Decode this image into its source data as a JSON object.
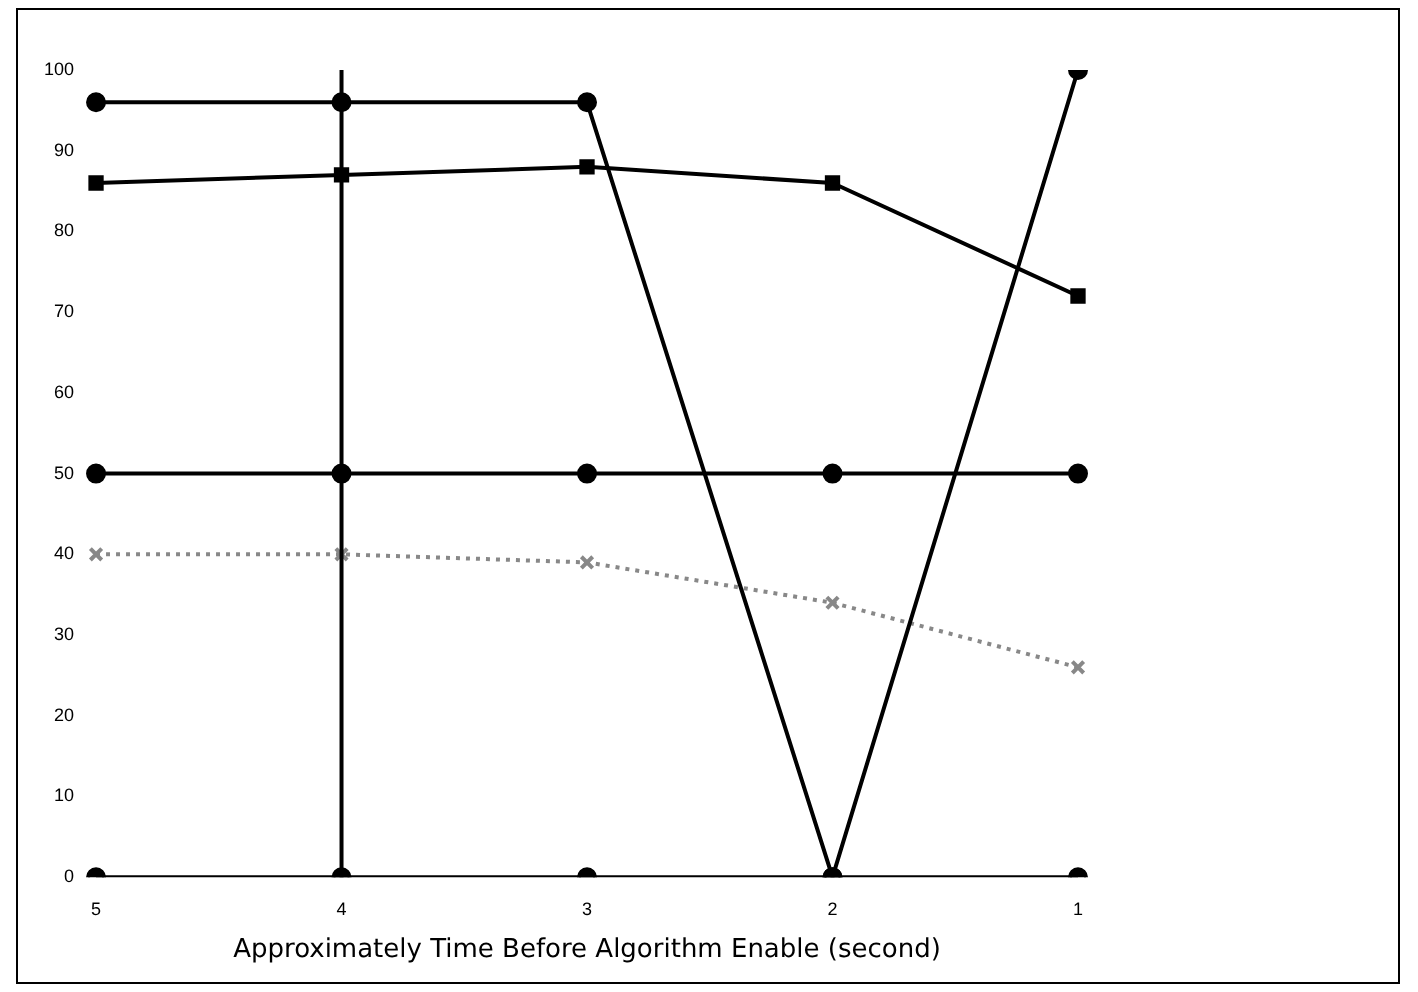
{
  "chart_data": {
    "type": "line",
    "xlabel": "Approximately Time Before Algorithm Enable (second)",
    "categories": [
      "5",
      "4",
      "3",
      "2",
      "1"
    ],
    "series": [
      {
        "color": "#000000",
        "values": [
          86,
          87,
          88,
          86,
          72
        ],
        "marker": "square"
      },
      {
        "color": "#000000",
        "values": [
          96,
          96,
          96,
          0,
          100
        ]
      },
      {
        "color": "#888888",
        "values": [
          40,
          40,
          39,
          34,
          26
        ],
        "line_style": "dotted",
        "marker": "cross"
      },
      {
        "color": "#000000",
        "values": [
          50,
          50,
          50,
          50,
          50
        ]
      },
      {
        "color": "#000000",
        "values": [
          0,
          0,
          0,
          0,
          0
        ]
      }
    ],
    "ref_lines": [
      {
        "axis": "x",
        "value": "4",
        "color": "#000000"
      }
    ],
    "ylim": [
      0,
      100
    ],
    "yticks": [
      0,
      10,
      20,
      30,
      40,
      50,
      60,
      70,
      80,
      90,
      100
    ],
    "marker": "circle",
    "grid": false,
    "legend": false
  }
}
